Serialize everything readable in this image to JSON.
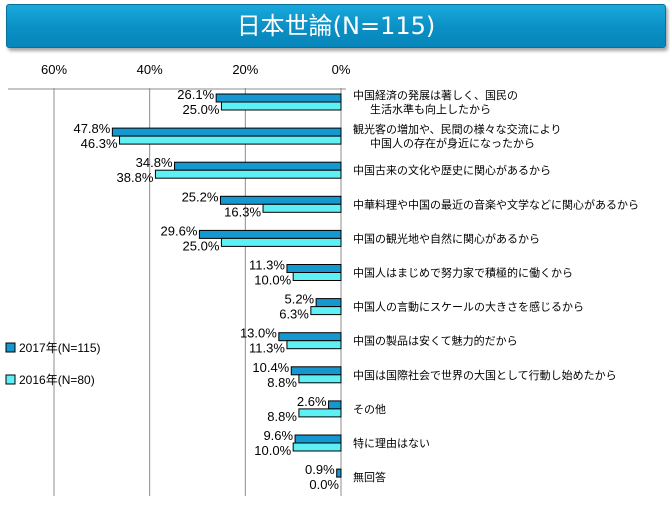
{
  "title": "日本世論(N=115)",
  "chart_data": {
    "type": "bar",
    "orientation": "horizontal",
    "direction": "right-to-left",
    "title": "日本世論(N=115)",
    "xlim": [
      0,
      60
    ],
    "xticks": [
      "60%",
      "40%",
      "20%",
      "0%"
    ],
    "xtick_values": [
      60,
      40,
      20,
      0
    ],
    "grid": true,
    "legend_position": "left",
    "categories": [
      [
        "中国経済の発展は著しく、国民の",
        "生活水準も向上したから"
      ],
      [
        "観光客の増加や、民間の様々な交流により",
        "中国人の存在が身近になったから"
      ],
      [
        "中国古来の文化や歴史に関心があるから"
      ],
      [
        "中華料理や中国の最近の音楽や文学などに関心があるから"
      ],
      [
        "中国の観光地や自然に関心があるから"
      ],
      [
        "中国人はまじめで努力家で積極的に働くから"
      ],
      [
        "中国人の言動にスケールの大きさを感じるから"
      ],
      [
        "中国の製品は安くて魅力的だから"
      ],
      [
        "中国は国際社会で世界の大国として行動し始めたから"
      ],
      [
        "その他"
      ],
      [
        "特に理由はない"
      ],
      [
        "無回答"
      ]
    ],
    "series": [
      {
        "name": "2017年(N=115)",
        "color": "#1598d0",
        "values": [
          26.1,
          47.8,
          34.8,
          25.2,
          29.6,
          11.3,
          5.2,
          13.0,
          10.4,
          2.6,
          9.6,
          0.9
        ],
        "labels": [
          "26.1%",
          "47.8%",
          "34.8%",
          "25.2%",
          "29.6%",
          "11.3%",
          "5.2%",
          "13.0%",
          "10.4%",
          "2.6%",
          "9.6%",
          "0.9%"
        ]
      },
      {
        "name": "2016年(N=80)",
        "color": "#5ff0f5",
        "values": [
          25.0,
          46.3,
          38.8,
          16.3,
          25.0,
          10.0,
          6.3,
          11.3,
          8.8,
          8.8,
          10.0,
          0.0
        ],
        "labels": [
          "25.0%",
          "46.3%",
          "38.8%",
          "16.3%",
          "25.0%",
          "10.0%",
          "6.3%",
          "11.3%",
          "8.8%",
          "8.8%",
          "10.0%",
          "0.0%"
        ]
      }
    ]
  }
}
